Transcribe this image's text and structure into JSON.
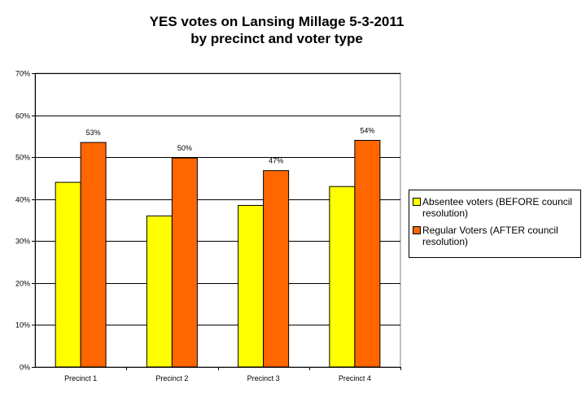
{
  "chart_data": {
    "type": "bar",
    "title": "YES votes on Lansing Millage 5-3-2011",
    "subtitle": "by precinct and voter type",
    "xlabel": "",
    "ylabel": "",
    "categories": [
      "Precinct 1",
      "Precinct 2",
      "Precinct 3",
      "Precinct 4"
    ],
    "series": [
      {
        "name": "Absentee voters (BEFORE council resolution)",
        "color": "#ffff00",
        "values": [
          0.44,
          0.36,
          0.385,
          0.43
        ],
        "labels": [
          "",
          "",
          "",
          ""
        ]
      },
      {
        "name": "Regular Voters (AFTER council resolution)",
        "color": "#ff6600",
        "values": [
          0.535,
          0.498,
          0.468,
          0.54
        ],
        "labels": [
          "53%",
          "50%",
          "47%",
          "54%"
        ]
      }
    ],
    "ylim": [
      0,
      0.7
    ],
    "yticks": [
      0,
      0.1,
      0.2,
      0.3,
      0.4,
      0.5,
      0.6,
      0.7
    ],
    "ytick_labels": [
      "0%",
      "10%",
      "20%",
      "30%",
      "40%",
      "50%",
      "60%",
      "70%"
    ],
    "grid": true,
    "legend_position": "right"
  }
}
